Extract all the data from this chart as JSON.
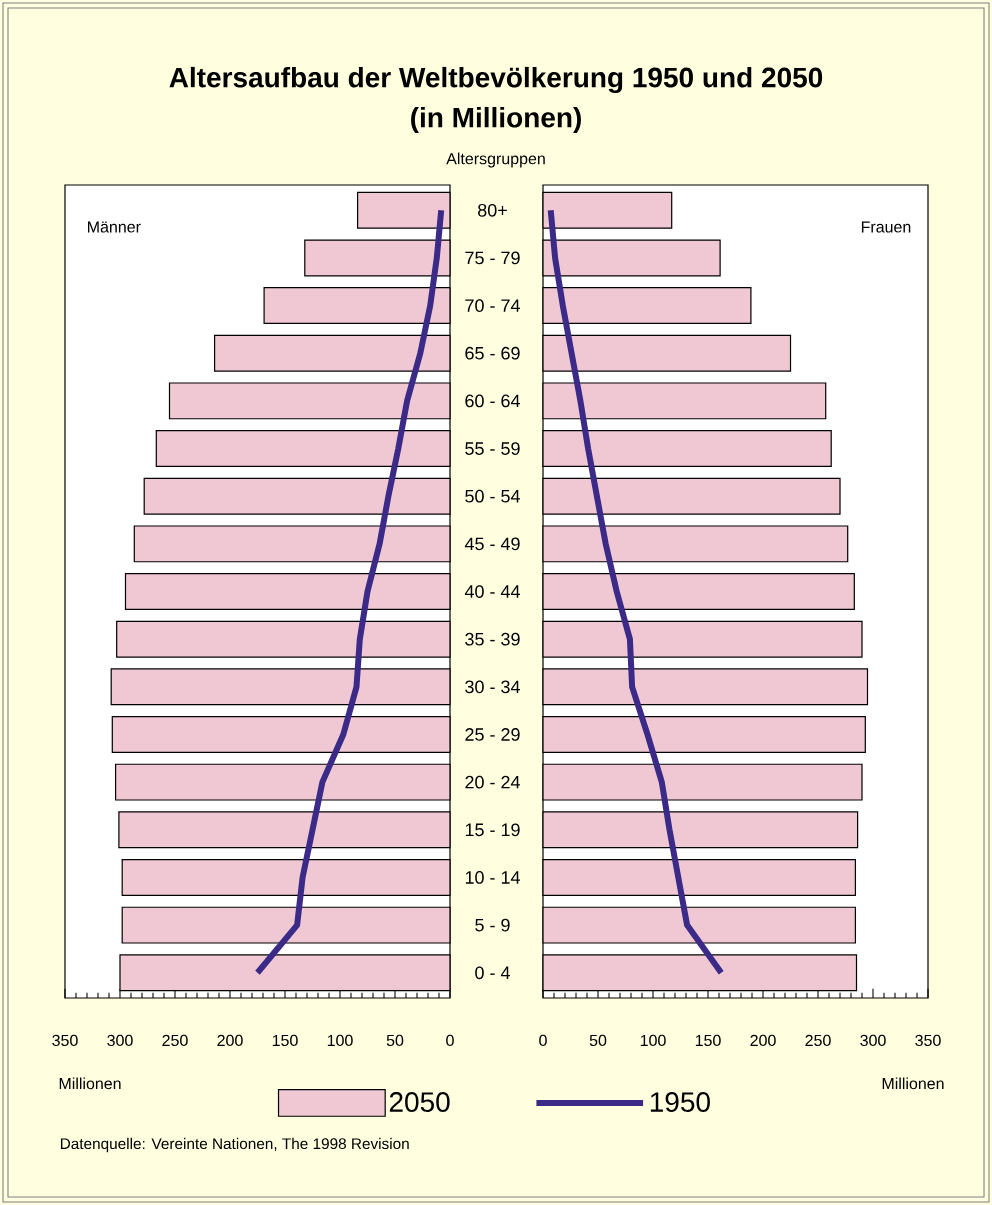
{
  "chart_data": [
    {
      "type": "bar",
      "orientation": "horizontal",
      "title": "Altersaufbau der Weltbevölkerung 1950 und 2050",
      "subtitle": "(in Millionen)",
      "ylabel": "Altersgruppen",
      "xlabel": "Millionen",
      "annotations": [
        "Männer",
        "Datenquelle: Vereinte Nationen, The 1998 Revision"
      ],
      "categories": [
        "80+",
        "75 - 79",
        "70 - 74",
        "65 - 69",
        "60 - 64",
        "55 - 59",
        "50 - 54",
        "45 - 49",
        "40 - 44",
        "35 - 39",
        "30 - 34",
        "25 - 29",
        "20 - 24",
        "15 - 19",
        "10 - 14",
        "5 - 9",
        "0 - 4"
      ],
      "xlim": [
        350,
        0
      ],
      "xticks": [
        350,
        300,
        250,
        200,
        150,
        100,
        50,
        0
      ],
      "legend": "bottom",
      "series": [
        {
          "name": "2050",
          "color": "#f0c8d4",
          "values": [
            84,
            132,
            169,
            214,
            255,
            267,
            278,
            287,
            295,
            303,
            308,
            307,
            304,
            301,
            298,
            298,
            300
          ]
        },
        {
          "name": "1950",
          "type": "line",
          "color": "#3b2a87",
          "values": [
            8,
            12,
            18,
            27,
            39,
            47,
            56,
            64,
            75,
            82,
            85,
            97,
            116,
            125,
            134,
            139,
            175
          ]
        }
      ]
    },
    {
      "type": "bar",
      "orientation": "horizontal",
      "xlabel": "Millionen",
      "annotations": [
        "Frauen"
      ],
      "categories": [
        null,
        null,
        null,
        null,
        null,
        null,
        null,
        null,
        null,
        null,
        null,
        null,
        null,
        null,
        null,
        null,
        null
      ],
      "xlim": [
        0,
        350
      ],
      "xticks": [
        0,
        50,
        100,
        150,
        200,
        250,
        300,
        350
      ],
      "tick_labels": "x",
      "series": [
        {
          "color": "#f0c8d4",
          "values": [
            117,
            161,
            189,
            225,
            257,
            262,
            270,
            277,
            283,
            290,
            295,
            293,
            290,
            286,
            284,
            284,
            285
          ]
        },
        {
          "type": "line",
          "color": "#3b2a87",
          "values": [
            7,
            11,
            18,
            26,
            34,
            41,
            49,
            57,
            67,
            79,
            81,
            95,
            108,
            115,
            123,
            131,
            162
          ]
        }
      ]
    }
  ]
}
